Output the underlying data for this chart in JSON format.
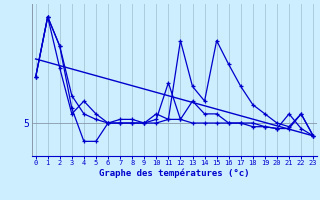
{
  "xlabel": "Graphe des températures (°c)",
  "background_color": "#cceeff",
  "plot_bg_color": "#cceeff",
  "line_color": "#0000cc",
  "grid_color": "#aaccdd",
  "ytick_labels": [
    "5"
  ],
  "ytick_pos": [
    5.0
  ],
  "xlim": [
    -0.3,
    23.3
  ],
  "ylim": [
    3.2,
    11.5
  ],
  "hours": [
    0,
    1,
    2,
    3,
    4,
    5,
    6,
    7,
    8,
    9,
    10,
    11,
    12,
    13,
    14,
    15,
    16,
    17,
    18,
    19,
    20,
    21,
    22,
    23
  ],
  "series1": [
    7.5,
    10.8,
    9.2,
    6.5,
    5.5,
    5.2,
    5.0,
    5.0,
    5.0,
    5.0,
    5.2,
    7.2,
    5.2,
    6.2,
    5.5,
    5.5,
    5.0,
    5.0,
    5.0,
    4.8,
    4.7,
    5.5,
    4.7,
    4.3
  ],
  "series2": [
    7.5,
    10.8,
    8.0,
    5.5,
    6.2,
    5.5,
    5.0,
    5.0,
    5.0,
    5.0,
    5.5,
    5.2,
    9.5,
    7.0,
    6.2,
    9.5,
    8.2,
    7.0,
    6.0,
    5.5,
    5.0,
    4.8,
    5.5,
    4.3
  ],
  "series3": [
    7.5,
    10.8,
    9.2,
    5.8,
    4.0,
    4.0,
    5.0,
    5.2,
    5.2,
    5.0,
    5.0,
    5.2,
    5.2,
    5.0,
    5.0,
    5.0,
    5.0,
    5.0,
    4.8,
    4.8,
    4.7,
    4.7,
    5.5,
    4.3
  ],
  "trend_start": 8.5,
  "trend_end": 4.3
}
